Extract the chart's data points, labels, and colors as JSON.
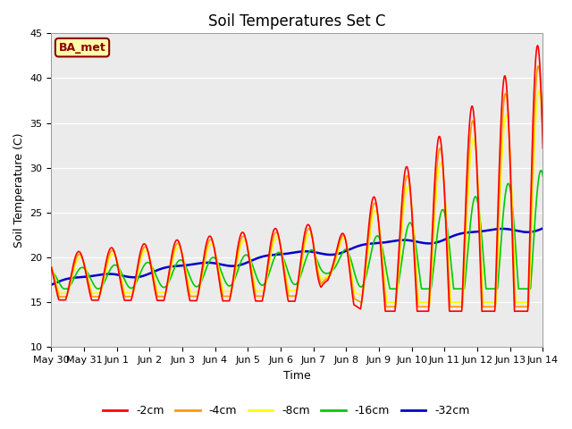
{
  "title": "Soil Temperatures Set C",
  "xlabel": "Time",
  "ylabel": "Soil Temperature (C)",
  "ylim": [
    10,
    45
  ],
  "yticks": [
    10,
    15,
    20,
    25,
    30,
    35,
    40,
    45
  ],
  "xlim_days": [
    0,
    15
  ],
  "xtick_labels": [
    "May 30",
    "May 31",
    "Jun 1",
    "Jun 2",
    "Jun 3",
    "Jun 4",
    "Jun 5",
    "Jun 6",
    "Jun 7",
    "Jun 8",
    "Jun 9",
    "Jun 10",
    "Jun 11",
    "Jun 12",
    "Jun 13",
    "Jun 14"
  ],
  "xtick_positions": [
    0,
    1,
    2,
    3,
    4,
    5,
    6,
    7,
    8,
    9,
    10,
    11,
    12,
    13,
    14,
    15
  ],
  "series_colors": [
    "#ff0000",
    "#ff9900",
    "#ffff00",
    "#00cc00",
    "#0000cc"
  ],
  "series_labels": [
    "-2cm",
    "-4cm",
    "-8cm",
    "-16cm",
    "-32cm"
  ],
  "plot_bg_color": "#ebebeb",
  "grid_color": "#ffffff",
  "annotation_text": "BA_met",
  "annotation_bg": "#ffffaa",
  "annotation_border": "#8b0000",
  "annotation_text_color": "#8b0000",
  "title_fontsize": 12,
  "tick_fontsize": 8,
  "legend_fontsize": 9,
  "axis_label_fontsize": 9
}
